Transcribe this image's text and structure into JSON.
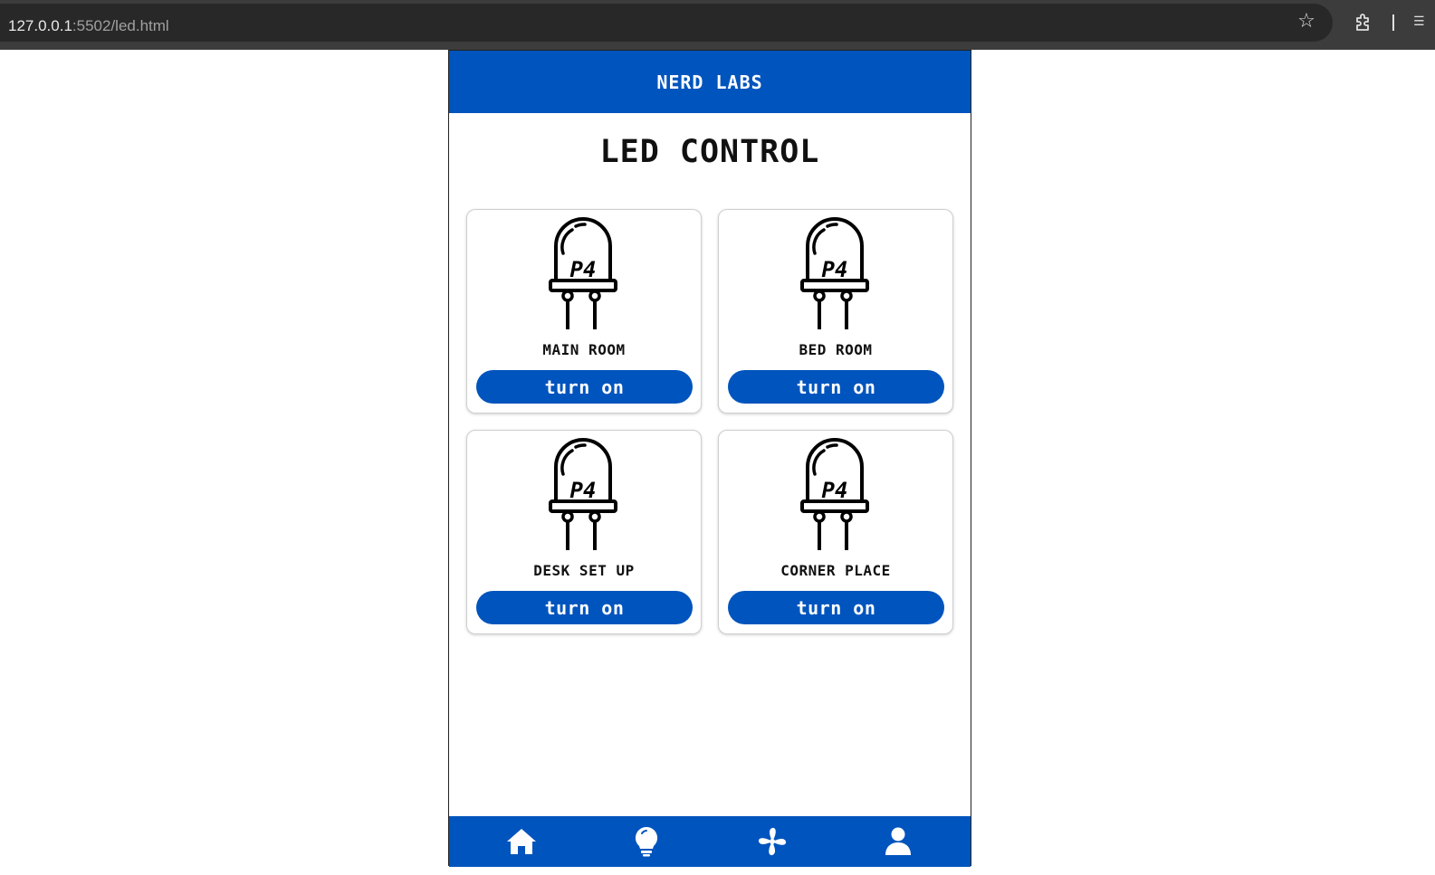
{
  "browser": {
    "url_host": "127.0.0.1",
    "url_path": ":5502/led.html"
  },
  "header": {
    "title": "NERD LABS"
  },
  "page": {
    "title": "LED CONTROL"
  },
  "cards": [
    {
      "label": "MAIN ROOM",
      "button": "turn on"
    },
    {
      "label": "BED ROOM",
      "button": "turn on"
    },
    {
      "label": "DESK SET UP",
      "button": "turn on"
    },
    {
      "label": "CORNER PLACE",
      "button": "turn on"
    }
  ],
  "led_icon_text": "P4",
  "nav": [
    {
      "icon": "home-icon"
    },
    {
      "icon": "bulb-icon"
    },
    {
      "icon": "fan-icon"
    },
    {
      "icon": "user-icon"
    }
  ],
  "colors": {
    "accent": "#0054bd",
    "chrome": "#3c3c3c"
  }
}
